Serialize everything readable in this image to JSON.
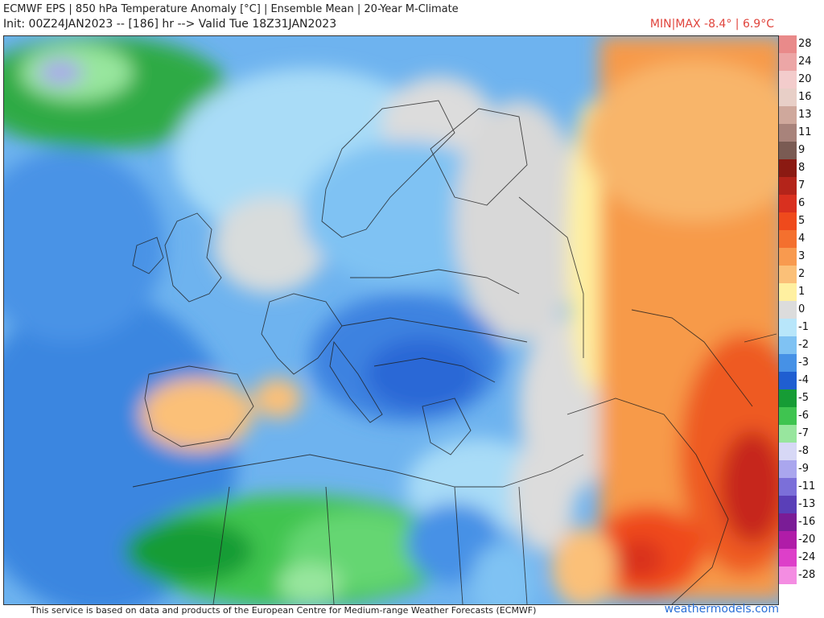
{
  "header": {
    "line1": "ECMWF EPS | 850 hPa Temperature Anomaly [°C] | Ensemble Mean | 20-Year M-Climate",
    "line2": "Init: 00Z24JAN2023 -- [186] hr --> Valid Tue 18Z31JAN2023",
    "minmax": "MIN|MAX -8.4° | 6.9°C"
  },
  "legend": {
    "items": [
      {
        "label": "28",
        "color": "#e98a8a"
      },
      {
        "label": "24",
        "color": "#eca6a6"
      },
      {
        "label": "20",
        "color": "#f3cccc"
      },
      {
        "label": "16",
        "color": "#e8cfc7"
      },
      {
        "label": "13",
        "color": "#cfa89c"
      },
      {
        "label": "11",
        "color": "#a8837b"
      },
      {
        "label": "9",
        "color": "#7a5b53"
      },
      {
        "label": "8",
        "color": "#8b1a12"
      },
      {
        "label": "7",
        "color": "#b4241a"
      },
      {
        "label": "6",
        "color": "#d9301f"
      },
      {
        "label": "5",
        "color": "#ef4a1c"
      },
      {
        "label": "4",
        "color": "#f4702e"
      },
      {
        "label": "3",
        "color": "#f89a4f"
      },
      {
        "label": "2",
        "color": "#fbc078"
      },
      {
        "label": "1",
        "color": "#fff0a0"
      },
      {
        "label": "0",
        "color": "#dcdcdc"
      },
      {
        "label": "-1",
        "color": "#b8e6fa"
      },
      {
        "label": "-2",
        "color": "#7fc2f3"
      },
      {
        "label": "-3",
        "color": "#4691e6"
      },
      {
        "label": "-4",
        "color": "#1f5ed1"
      },
      {
        "label": "-5",
        "color": "#169c35"
      },
      {
        "label": "-6",
        "color": "#3fc450"
      },
      {
        "label": "-7",
        "color": "#98e69e"
      },
      {
        "label": "-8",
        "color": "#d7d8f6"
      },
      {
        "label": "-9",
        "color": "#aaa6ee"
      },
      {
        "label": "-11",
        "color": "#7b6fd9"
      },
      {
        "label": "-13",
        "color": "#5a3fb8"
      },
      {
        "label": "-16",
        "color": "#7a1c96"
      },
      {
        "label": "-20",
        "color": "#b01ca8"
      },
      {
        "label": "-24",
        "color": "#dd3fc9"
      },
      {
        "label": "-28",
        "color": "#f48de2"
      }
    ]
  },
  "footer": {
    "credit": "This service is based on data and products of the European Centre for Medium-range Weather Forecasts (ECMWF)",
    "brand": "weathermodels.com"
  },
  "colors": {
    "minmax_text": "#e0443c",
    "brand_text": "#2a6fd6"
  }
}
